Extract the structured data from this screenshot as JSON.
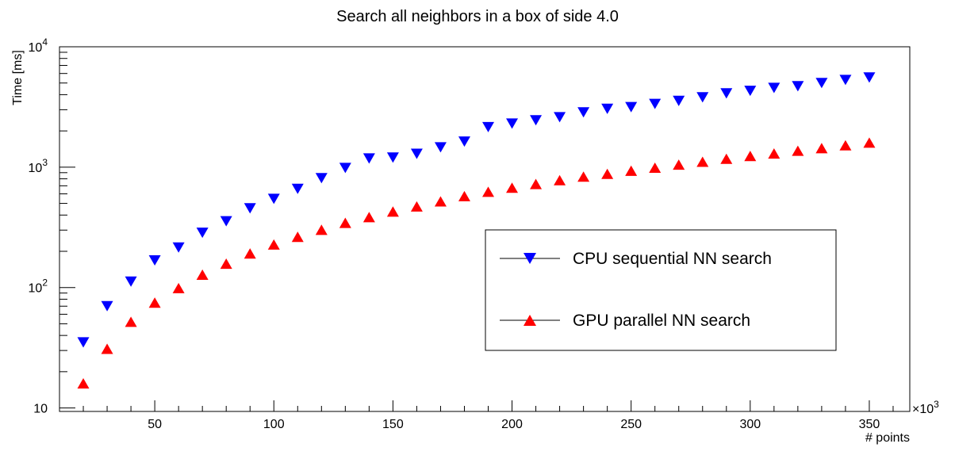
{
  "chart_data": {
    "type": "scatter",
    "title": "Search all neighbors in a box of side 4.0",
    "xlabel": "# points",
    "ylabel": "Time [ms]",
    "x_multiplier": "×10",
    "x_multiplier_exp": "3",
    "xlim": [
      10,
      367
    ],
    "ylim": [
      9.35,
      10000
    ],
    "ylog": true,
    "grid": false,
    "legend_position": "center-right",
    "x_ticks": [
      50,
      100,
      150,
      200,
      250,
      300,
      350
    ],
    "x_tick_labels": [
      "50",
      "100",
      "150",
      "200",
      "250",
      "300",
      "350"
    ],
    "y_ticks": [
      10,
      100,
      1000,
      10000
    ],
    "y_tick_labels": [
      {
        "base": "10",
        "exp": ""
      },
      {
        "base": "10",
        "exp": "2"
      },
      {
        "base": "10",
        "exp": "3"
      },
      {
        "base": "10",
        "exp": "4"
      }
    ],
    "x": [
      20,
      30,
      40,
      50,
      60,
      70,
      80,
      90,
      100,
      110,
      120,
      130,
      140,
      150,
      160,
      170,
      180,
      190,
      200,
      210,
      220,
      230,
      240,
      250,
      260,
      270,
      280,
      290,
      300,
      310,
      320,
      330,
      340,
      350
    ],
    "series": [
      {
        "name": "CPU sequential NN search",
        "color": "#0000ff",
        "marker": "triangle-down",
        "values": [
          35,
          70,
          112,
          168,
          215,
          285,
          355,
          455,
          545,
          660,
          810,
          985,
          1180,
          1200,
          1290,
          1460,
          1630,
          2150,
          2300,
          2450,
          2600,
          2850,
          3050,
          3150,
          3350,
          3550,
          3800,
          4100,
          4300,
          4550,
          4700,
          5000,
          5300,
          5550
        ]
      },
      {
        "name": "GPU parallel NN search",
        "color": "#ff0000",
        "marker": "triangle-up",
        "values": [
          16,
          31,
          52,
          75,
          99,
          128,
          158,
          192,
          228,
          264,
          302,
          345,
          385,
          428,
          472,
          520,
          575,
          625,
          675,
          725,
          780,
          835,
          880,
          935,
          990,
          1050,
          1110,
          1175,
          1240,
          1300,
          1370,
          1440,
          1520,
          1600
        ]
      }
    ]
  }
}
